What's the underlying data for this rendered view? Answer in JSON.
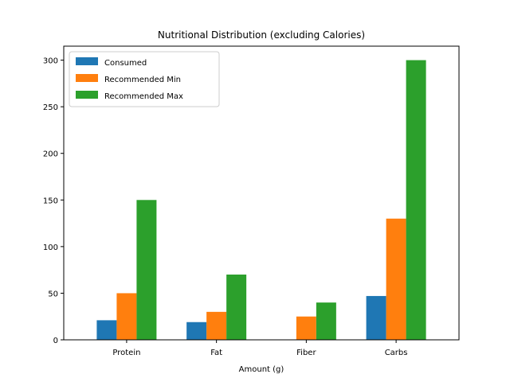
{
  "chart_data": {
    "type": "bar",
    "title": "Nutritional Distribution (excluding Calories)",
    "xlabel": "Amount (g)",
    "ylabel": "",
    "categories": [
      "Protein",
      "Fat",
      "Fiber",
      "Carbs"
    ],
    "series": [
      {
        "name": "Consumed",
        "values": [
          21,
          19,
          0,
          47
        ],
        "color": "#1f77b4"
      },
      {
        "name": "Recommended Min",
        "values": [
          50,
          30,
          25,
          130
        ],
        "color": "#ff7f0e"
      },
      {
        "name": "Recommended Max",
        "values": [
          150,
          70,
          40,
          300
        ],
        "color": "#2ca02c"
      }
    ],
    "ylim": [
      0,
      315
    ],
    "yticks": [
      0,
      50,
      100,
      150,
      200,
      250,
      300
    ],
    "grid": false,
    "legend_position": "top-left"
  }
}
